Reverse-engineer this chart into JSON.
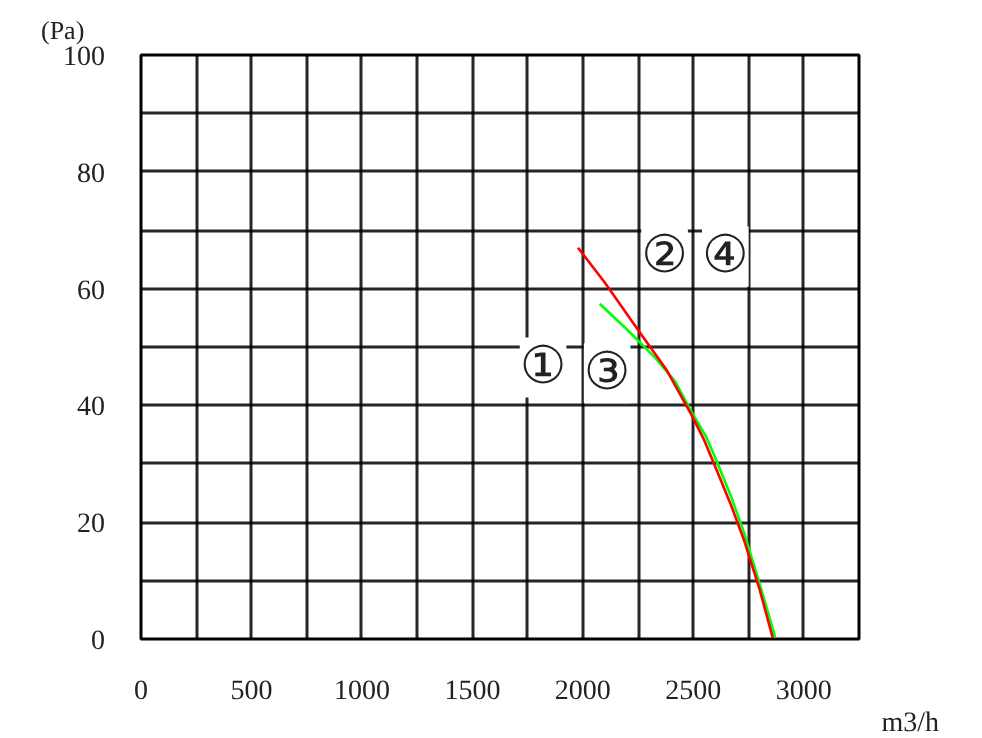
{
  "chart_data": {
    "type": "line",
    "xlabel": "m3/h",
    "ylabel": "(Pa)",
    "annotations": [
      "①",
      "②",
      "③",
      "④"
    ],
    "xlim": [
      0,
      3250
    ],
    "ylim": [
      0,
      100
    ],
    "xticks": [
      0,
      {
        "value": 250,
        "label": null
      },
      500,
      {
        "value": 750,
        "label": null
      },
      1000,
      {
        "value": 1250,
        "label": null
      },
      1500,
      {
        "value": 1750,
        "label": null
      },
      2000,
      {
        "value": 2250,
        "label": null
      },
      2500,
      {
        "value": 2750,
        "label": null
      },
      3000,
      {
        "value": 3250,
        "label": null
      }
    ],
    "yticks": [
      0,
      {
        "value": 10,
        "label": null
      },
      20,
      {
        "value": 30,
        "label": null
      },
      40,
      {
        "value": 50,
        "label": null
      },
      60,
      {
        "value": 70,
        "label": null
      },
      80,
      {
        "value": 90,
        "label": null
      },
      100
    ],
    "grid": true,
    "marker": "none",
    "line_style": "solid",
    "series": [
      {
        "color": "#00ff00",
        "x": [
          2076,
          2200,
          2331,
          2420,
          2490,
          2560,
          2605,
          2670,
          2729,
          2800,
          2873
        ],
        "values": [
          57.4,
          53,
          48,
          44,
          39,
          34.5,
          30.5,
          24.5,
          18.3,
          9.5,
          0
        ]
      },
      {
        "color": "#ff0000",
        "x": [
          1978,
          2100,
          2254,
          2380,
          2490,
          2550,
          2605,
          2670,
          2729,
          2800,
          2861
        ],
        "values": [
          67,
          61,
          52.7,
          46,
          38.5,
          34,
          29,
          23,
          17,
          8.5,
          0
        ]
      }
    ]
  }
}
